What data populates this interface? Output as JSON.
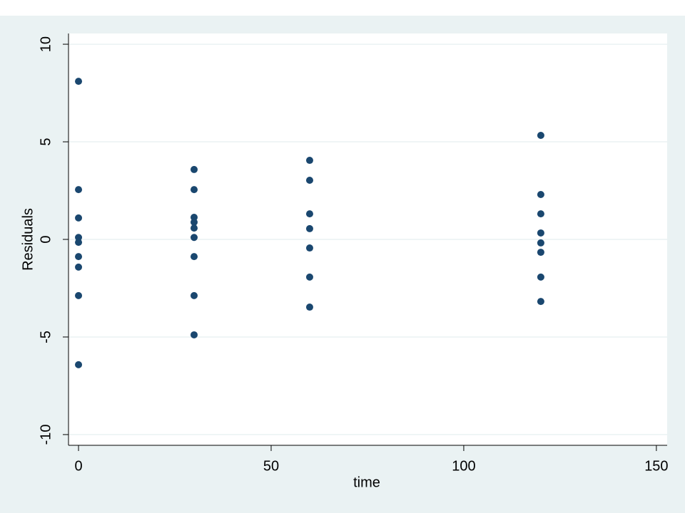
{
  "chart_data": {
    "type": "scatter",
    "x_label": "time",
    "y_label": "Residuals",
    "x": [
      0,
      0,
      0,
      0,
      0,
      0,
      0,
      0,
      0,
      30,
      30,
      30,
      30,
      30,
      30,
      30,
      30,
      30,
      60,
      60,
      60,
      60,
      60,
      60,
      60,
      120,
      120,
      120,
      120,
      120,
      120,
      120,
      120
    ],
    "values": [
      8.1,
      2.55,
      1.1,
      0.1,
      -0.15,
      -0.88,
      -1.42,
      -2.88,
      -6.42,
      3.58,
      2.55,
      1.13,
      0.88,
      0.58,
      0.1,
      -0.88,
      -2.88,
      -4.89,
      4.05,
      3.03,
      1.31,
      0.55,
      -0.44,
      -1.93,
      -3.47,
      5.33,
      2.3,
      1.31,
      0.33,
      -0.18,
      -0.66,
      -1.93,
      -3.18
    ],
    "color": "#1a476f",
    "xlim": [
      -2.6,
      152.8
    ],
    "ylim": [
      -10.55,
      10.55
    ],
    "xticks": [
      0,
      50,
      100,
      150
    ],
    "yticks": [
      -10,
      -5,
      0,
      5,
      10
    ],
    "grid": true
  }
}
